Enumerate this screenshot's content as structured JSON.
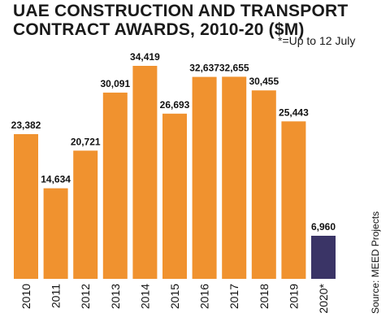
{
  "header": {
    "title_line1": "UAE CONSTRUCTION AND TRANSPORT",
    "title_line2": "CONTRACT AWARDS, 2010-20 ($M)",
    "note": "*=Up to 12 July"
  },
  "source": "Source: MEED Projects",
  "colors": {
    "bar": "#f0922f",
    "highlight": "#3a3466"
  },
  "chart_data": {
    "type": "bar",
    "title": "UAE CONSTRUCTION AND TRANSPORT CONTRACT AWARDS, 2010-20 ($M)",
    "categories": [
      "2010",
      "2011",
      "2012",
      "2013",
      "2014",
      "2015",
      "2016",
      "2017",
      "2018",
      "2019",
      "2020*"
    ],
    "values": [
      23382,
      14634,
      20721,
      30091,
      34419,
      26693,
      32637,
      32655,
      30455,
      25443,
      6960
    ],
    "labels": [
      "23,382",
      "14,634",
      "20,721",
      "30,091",
      "34,419",
      "26,693",
      "32,637",
      "32,655",
      "30,455",
      "25,443",
      "6,960"
    ],
    "highlight_index": 10,
    "ylim": [
      0,
      36000
    ],
    "grid": false,
    "legend": "none"
  }
}
